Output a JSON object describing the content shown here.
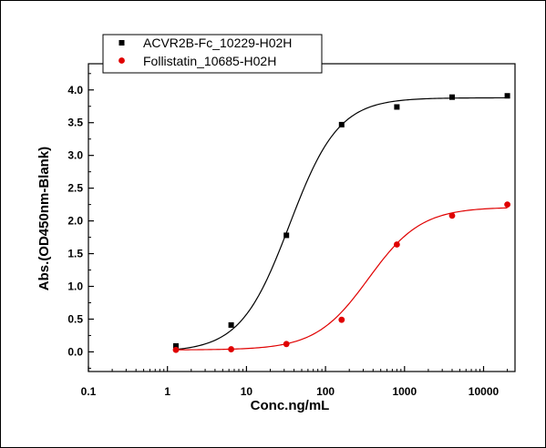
{
  "chart_data": {
    "type": "scatter",
    "title": "",
    "xlabel": "Conc.ng/mL",
    "ylabel": "Abs.(OD450nm-Blank)",
    "x_scale": "log",
    "xlim": [
      0.1,
      25000
    ],
    "ylim": [
      -0.3,
      4.4
    ],
    "x_tick_values": [
      0.1,
      1,
      10,
      100,
      1000,
      10000
    ],
    "x_tick_labels": [
      "0.1",
      "1",
      "10",
      "100",
      "1000",
      "10000"
    ],
    "y_tick_values": [
      0,
      0.5,
      1,
      1.5,
      2,
      2.5,
      3,
      3.5,
      4
    ],
    "y_tick_labels": [
      "0.0",
      "0.5",
      "1.0",
      "1.5",
      "2.0",
      "2.5",
      "3.0",
      "3.5",
      "4.0"
    ],
    "grid": false,
    "legend_position": "top-left",
    "series": [
      {
        "name": "ACVR2B-Fc_10229-H02H",
        "marker": "square",
        "color": "#000000",
        "x": [
          1.28,
          6.4,
          32,
          160,
          800,
          4000,
          20000
        ],
        "y": [
          0.09,
          0.41,
          1.78,
          3.47,
          3.74,
          3.89,
          3.91
        ],
        "fit": {
          "bottom": 0.0,
          "top": 3.88,
          "ec50": 35,
          "hill": 1.4
        }
      },
      {
        "name": "Follistatin_10685-H02H",
        "marker": "circle",
        "color": "#e00000",
        "x": [
          1.28,
          6.4,
          32,
          160,
          800,
          4000,
          20000
        ],
        "y": [
          0.03,
          0.04,
          0.12,
          0.49,
          1.64,
          2.08,
          2.25
        ],
        "fit": {
          "bottom": 0.03,
          "top": 2.21,
          "ec50": 350,
          "hill": 1.3
        }
      }
    ]
  }
}
